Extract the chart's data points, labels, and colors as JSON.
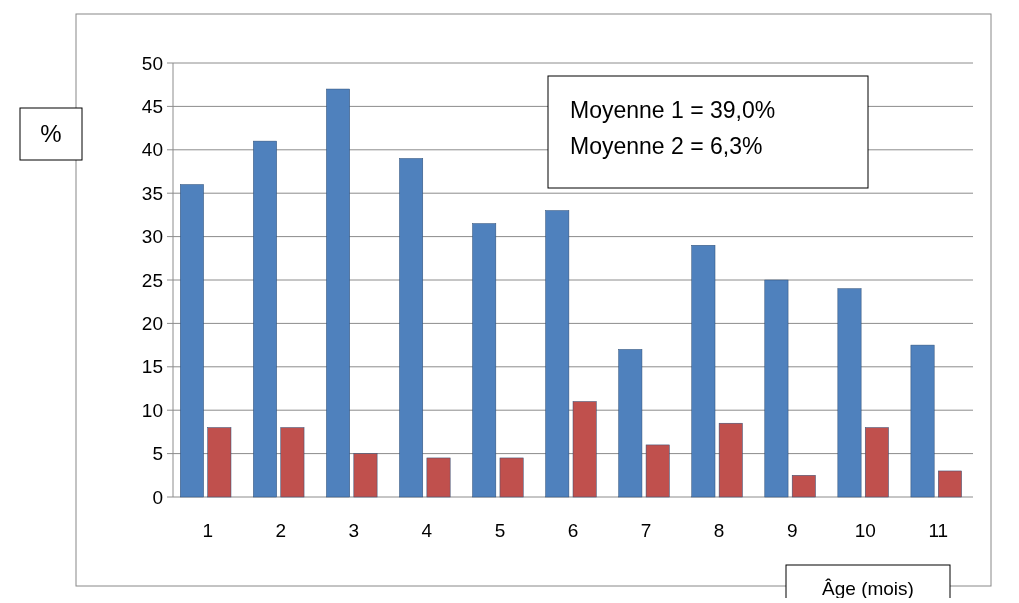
{
  "chart_data": {
    "type": "bar",
    "categories": [
      "1",
      "2",
      "3",
      "4",
      "5",
      "6",
      "7",
      "8",
      "9",
      "10",
      "11"
    ],
    "series": [
      {
        "color": "#4f81bd",
        "values": [
          36,
          41,
          47,
          39,
          31.5,
          33,
          17,
          29,
          25,
          24,
          17.5
        ]
      },
      {
        "color": "#c0504d",
        "values": [
          8,
          8,
          5,
          4.5,
          4.5,
          11,
          6,
          8.5,
          2.5,
          8,
          3
        ]
      }
    ],
    "ylabel": "%",
    "xlabel": "Âge (mois)",
    "ylim": [
      0,
      50
    ],
    "yticks": [
      0,
      5,
      10,
      15,
      20,
      25,
      30,
      35,
      40,
      45,
      50
    ],
    "grid": "y",
    "annotations": [
      "Moyenne 1 = 39,0%",
      "Moyenne 2 = 6,3%"
    ]
  }
}
